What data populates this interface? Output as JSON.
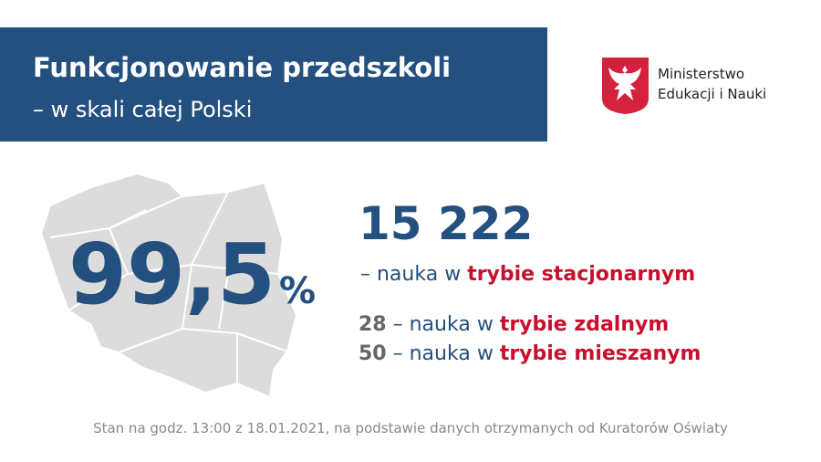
{
  "header": {
    "title": "Funkcjonowanie przedszkoli",
    "subtitle": "– w skali całej Polski"
  },
  "logo": {
    "lines": [
      "Ministerstwo",
      "Edukacji i Nauki"
    ]
  },
  "headline": {
    "value": "99,5",
    "unit": "%"
  },
  "main_stat": {
    "count": "15 222",
    "text": "– nauka w",
    "mode": "trybie stacjonarnym"
  },
  "other_stats": [
    {
      "count": "28",
      "text": "– nauka w",
      "mode": "trybie zdalnym"
    },
    {
      "count": "50",
      "text": "– nauka w",
      "mode": "trybie mieszanym"
    }
  ],
  "footer": "Stan na godz. 13:00 z 18.01.2021, na podstawie danych otrzymanych od Kuratorów Oświaty"
}
